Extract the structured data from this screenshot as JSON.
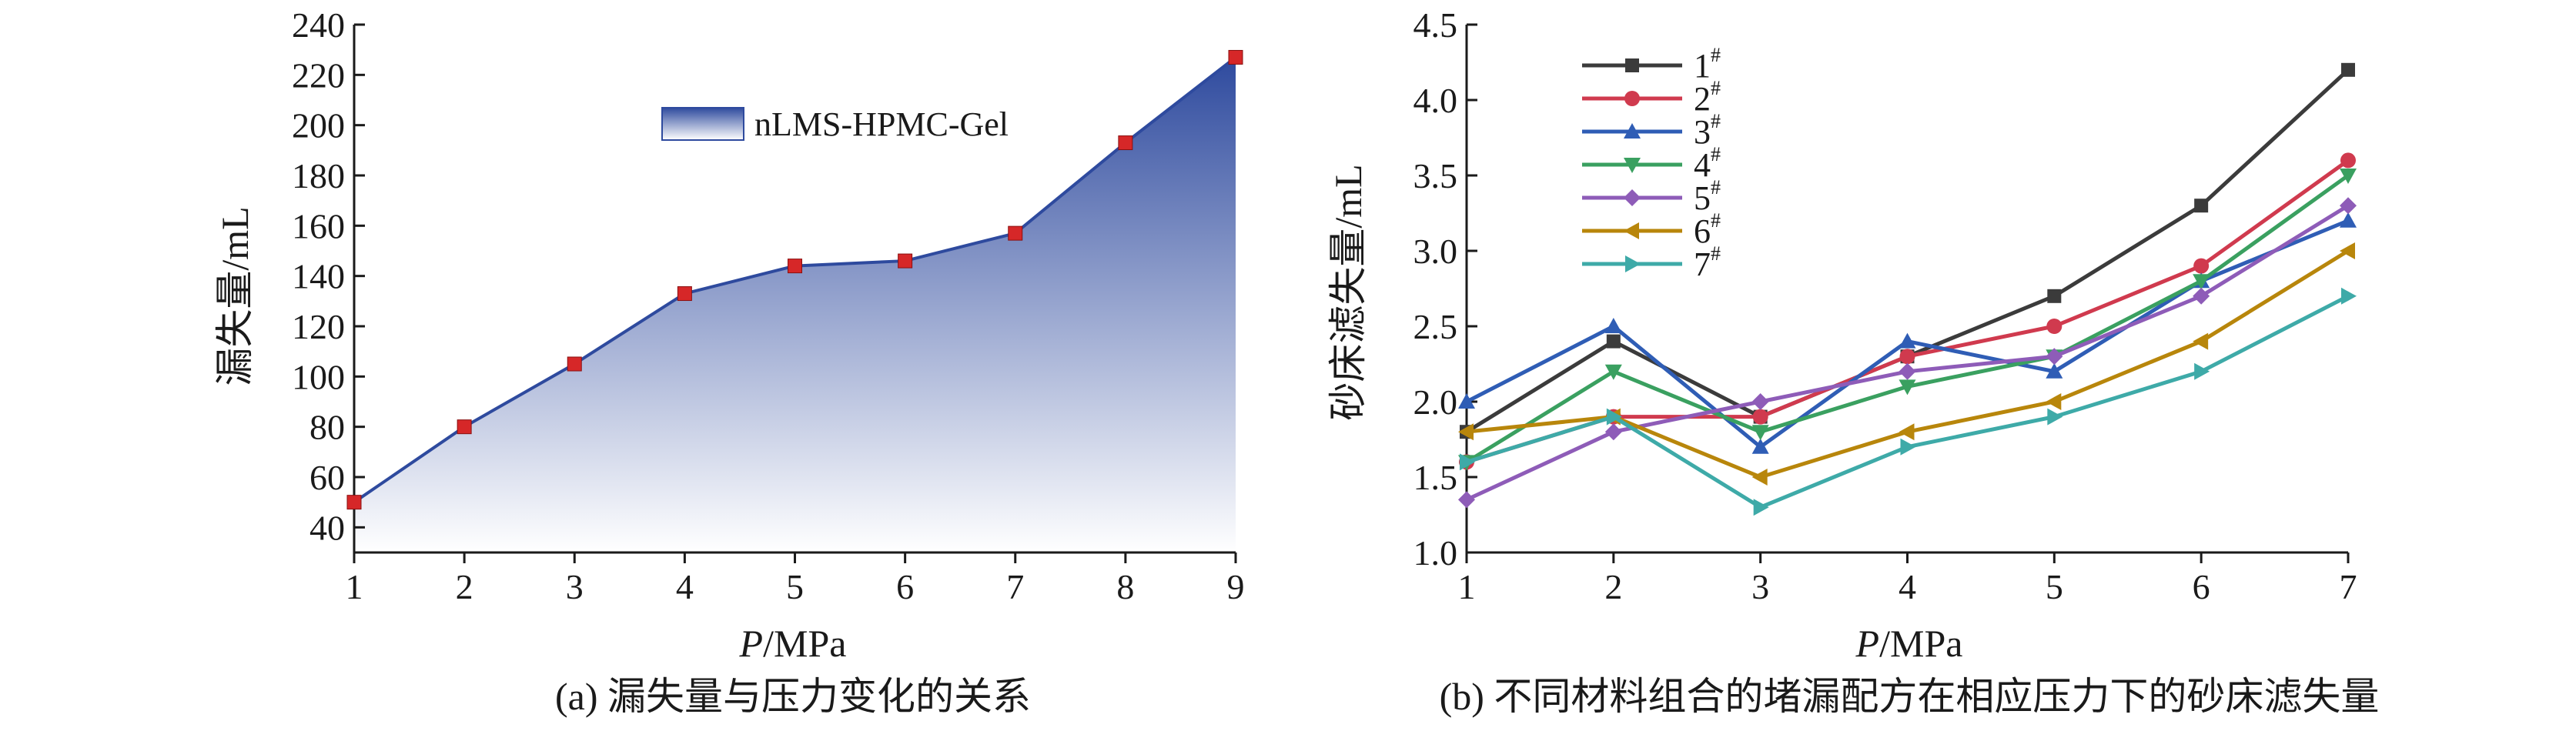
{
  "chart_data": [
    {
      "id": "a",
      "type": "area",
      "caption": "(a) 漏失量与压力变化的关系",
      "xlabel_italic": "P",
      "xlabel_unit": "/MPa",
      "ylabel": "漏失量/mL",
      "x": [
        1,
        2,
        3,
        4,
        5,
        6,
        7,
        8,
        9
      ],
      "xlim": [
        1,
        9
      ],
      "ylim": [
        30,
        240
      ],
      "yticks": [
        40,
        60,
        80,
        100,
        120,
        140,
        160,
        180,
        200,
        220,
        240
      ],
      "legend_position": "top-center",
      "series": [
        {
          "name": "nLMS-HPMC-Gel",
          "color": "#2e4a9e",
          "marker_color": "#d62728",
          "values": [
            50,
            80,
            105,
            133,
            144,
            146,
            157,
            193,
            227
          ]
        }
      ]
    },
    {
      "id": "b",
      "type": "line",
      "caption": "(b) 不同材料组合的堵漏配方在相应压力下的砂床滤失量",
      "xlabel_italic": "P",
      "xlabel_unit": "/MPa",
      "ylabel": "砂床滤失量/mL",
      "x": [
        1,
        2,
        3,
        4,
        5,
        6,
        7
      ],
      "xlim": [
        1,
        7
      ],
      "ylim": [
        1.0,
        4.5
      ],
      "yticks": [
        "1.0",
        "1.5",
        "2.0",
        "2.5",
        "3.0",
        "3.5",
        "4.0",
        "4.5"
      ],
      "legend_position": "top-left",
      "series": [
        {
          "name": "1",
          "sup": "#",
          "color": "#3b3b3b",
          "marker": "square",
          "values": [
            1.8,
            2.4,
            1.9,
            2.3,
            2.7,
            3.3,
            4.2
          ]
        },
        {
          "name": "2",
          "sup": "#",
          "color": "#d03a4e",
          "marker": "circle",
          "values": [
            1.6,
            1.9,
            1.9,
            2.3,
            2.5,
            2.9,
            3.6
          ]
        },
        {
          "name": "3",
          "sup": "#",
          "color": "#2f5db5",
          "marker": "triangle-up",
          "values": [
            2.0,
            2.5,
            1.7,
            2.4,
            2.2,
            2.8,
            3.2
          ]
        },
        {
          "name": "4",
          "sup": "#",
          "color": "#3aa060",
          "marker": "triangle-down",
          "values": [
            1.6,
            2.2,
            1.8,
            2.1,
            2.3,
            2.8,
            3.5
          ]
        },
        {
          "name": "5",
          "sup": "#",
          "color": "#8e5cb8",
          "marker": "diamond",
          "values": [
            1.35,
            1.8,
            2.0,
            2.2,
            2.3,
            2.7,
            3.3
          ]
        },
        {
          "name": "6",
          "sup": "#",
          "color": "#b8860b",
          "marker": "triangle-left",
          "values": [
            1.8,
            1.9,
            1.5,
            1.8,
            2.0,
            2.4,
            3.0
          ]
        },
        {
          "name": "7",
          "sup": "#",
          "color": "#3eaaa8",
          "marker": "triangle-right",
          "values": [
            1.6,
            1.9,
            1.3,
            1.7,
            1.9,
            2.2,
            2.7
          ]
        }
      ]
    }
  ]
}
